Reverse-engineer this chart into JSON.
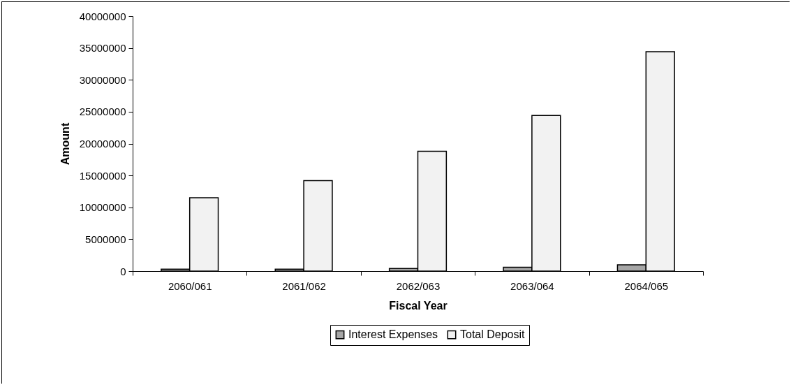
{
  "chart_data": {
    "type": "bar",
    "xlabel": "Fiscal Year",
    "ylabel": "Amount",
    "categories": [
      "2060/061",
      "2061/062",
      "2062/063",
      "2063/064",
      "2064/065"
    ],
    "series": [
      {
        "name": "Interest Expenses",
        "color": "#a6a6a6",
        "values": [
          300000,
          300000,
          400000,
          600000,
          1000000
        ]
      },
      {
        "name": "Total Deposit",
        "color": "#f2f2f2",
        "values": [
          11500000,
          14200000,
          18800000,
          24400000,
          34400000
        ]
      }
    ],
    "ylim": [
      0,
      40000000
    ],
    "yticks": [
      0,
      5000000,
      10000000,
      15000000,
      20000000,
      25000000,
      30000000,
      35000000,
      40000000
    ],
    "grid": false,
    "legend": "bottom"
  }
}
